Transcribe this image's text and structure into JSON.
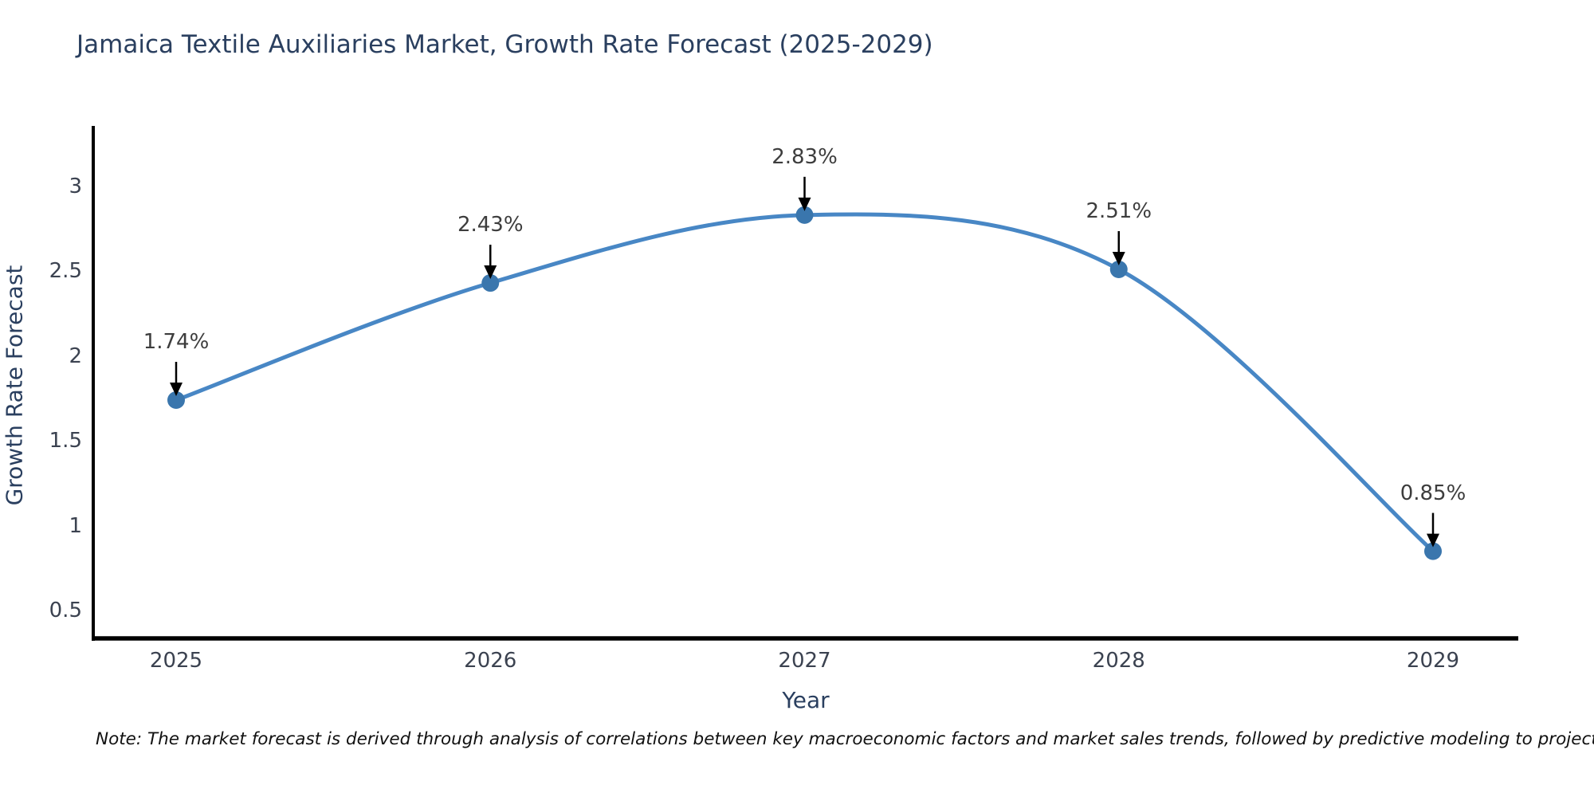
{
  "title": "Jamaica Textile Auxiliaries Market, Growth Rate Forecast (2025-2029)",
  "x_axis": {
    "label": "Year",
    "ticks": [
      {
        "value": 2025,
        "label": "2025"
      },
      {
        "value": 2026,
        "label": "2026"
      },
      {
        "value": 2027,
        "label": "2027"
      },
      {
        "value": 2028,
        "label": "2028"
      },
      {
        "value": 2029,
        "label": "2029"
      }
    ]
  },
  "y_axis": {
    "label": "Growth Rate Forecast",
    "ticks": [
      {
        "value": 0.5,
        "label": "0.5"
      },
      {
        "value": 1,
        "label": "1"
      },
      {
        "value": 1.5,
        "label": "1.5"
      },
      {
        "value": 2,
        "label": "2"
      },
      {
        "value": 2.5,
        "label": "2.5"
      },
      {
        "value": 3,
        "label": "3"
      }
    ]
  },
  "note": "Note: The market forecast is derived through analysis of correlations between key macroeconomic factors and market sales trends, followed by predictive modeling to project future sales",
  "colors": {
    "line": "#4887c5",
    "marker": "#3a76ad",
    "arrow": "#000000",
    "axis": "#000000",
    "title_text": "#2a3f5f",
    "tick_text": "#3b4250",
    "annotation_text": "#3d3d3d"
  },
  "chart_data": {
    "type": "line",
    "x": [
      2025,
      2026,
      2027,
      2028,
      2029
    ],
    "series": [
      {
        "name": "Growth Rate Forecast",
        "values": [
          1.74,
          2.43,
          2.83,
          2.51,
          0.85
        ]
      }
    ],
    "point_labels": [
      "1.74%",
      "2.43%",
      "2.83%",
      "2.51%",
      "0.85%"
    ],
    "title": "Jamaica Textile Auxiliaries Market, Growth Rate Forecast (2025-2029)",
    "xlabel": "Year",
    "ylabel": "Growth Rate Forecast",
    "xlim": [
      2024.74,
      2029.27
    ],
    "ylim": [
      0.34,
      3.35
    ],
    "line_shape": "spline",
    "grid": false,
    "legend": false,
    "markers": true,
    "annotations": "value labels with downward arrows above each point"
  }
}
